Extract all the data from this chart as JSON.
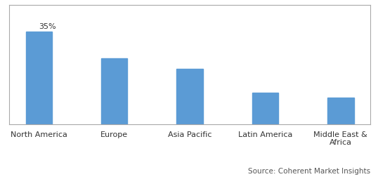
{
  "categories": [
    "North America",
    "Europe",
    "Asia Pacific",
    "Latin America",
    "Middle East &\nAfrica"
  ],
  "values": [
    35,
    25,
    21,
    12,
    10
  ],
  "bar_color": "#5b9bd5",
  "annotation_text": "35%",
  "annotation_fontsize": 8,
  "ylim": [
    0,
    45
  ],
  "bar_width": 0.35,
  "source_text": "Source: Coherent Market Insights",
  "source_fontsize": 7.5,
  "tick_fontsize": 8,
  "background_color": "#ffffff",
  "border_color": "#a9a9a9",
  "figsize": [
    5.38,
    2.72
  ],
  "dpi": 100
}
